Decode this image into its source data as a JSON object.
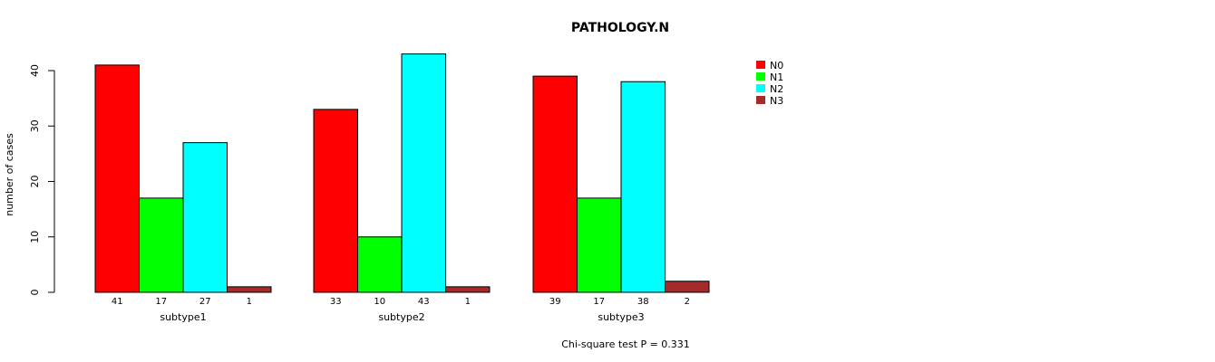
{
  "chart_data": {
    "type": "bar",
    "title": "PATHOLOGY.N",
    "ylabel": "number of cases",
    "xlabel": "",
    "footnote": "Chi-square test P = 0.331",
    "ylim": [
      0,
      40
    ],
    "yticks": [
      0,
      10,
      20,
      30,
      40
    ],
    "groups": [
      "subtype1",
      "subtype2",
      "subtype3"
    ],
    "series": [
      {
        "name": "N0",
        "color": "#ff0000",
        "values": [
          41,
          33,
          39
        ]
      },
      {
        "name": "N1",
        "color": "#00ff00",
        "values": [
          17,
          10,
          17
        ]
      },
      {
        "name": "N2",
        "color": "#00ffff",
        "values": [
          27,
          43,
          38
        ]
      },
      {
        "name": "N3",
        "color": "#a52a2a",
        "values": [
          1,
          1,
          2
        ]
      }
    ],
    "legend_position": "top-right",
    "grid": false
  }
}
